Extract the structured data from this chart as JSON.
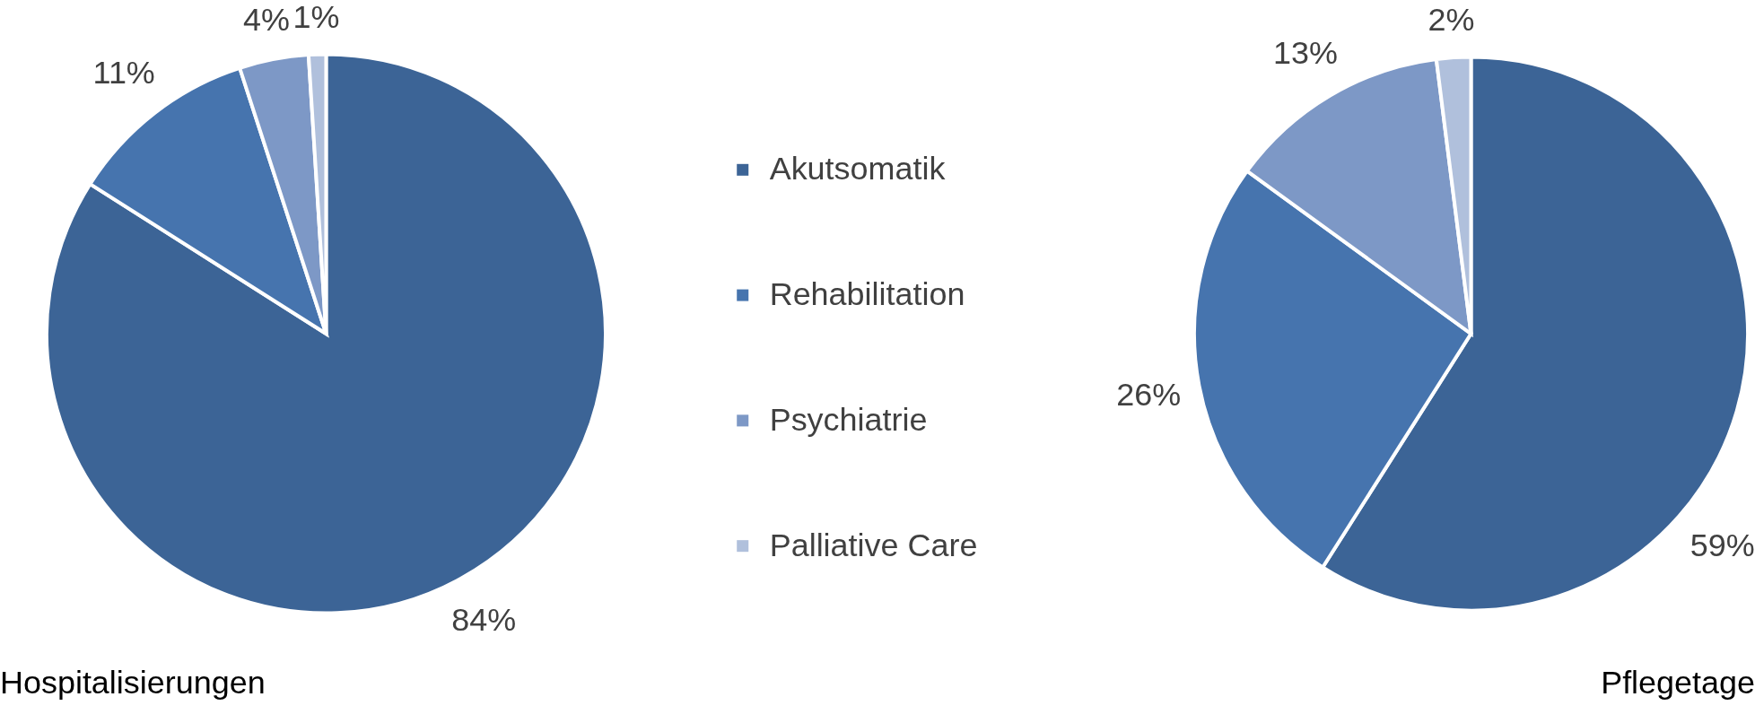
{
  "chart_data": [
    {
      "type": "pie",
      "title": "Hospitalisierungen",
      "categories": [
        "Akutsomatik",
        "Rehabilitation",
        "Psychiatrie",
        "Palliative Care"
      ],
      "values": [
        84,
        11,
        4,
        1
      ],
      "value_labels": [
        "84%",
        "11%",
        "4%",
        "1%"
      ],
      "colors": [
        "#3c6496",
        "#4674ae",
        "#7d98c6",
        "#b0c0dc"
      ],
      "legend": "right"
    },
    {
      "type": "pie",
      "title": "Pflegetage",
      "categories": [
        null,
        null,
        null,
        null
      ],
      "values": [
        59,
        26,
        13,
        2
      ],
      "value_labels": [
        "59%",
        "26%",
        "13%",
        "2%"
      ],
      "colors": [
        "#3c6496",
        "#4674ae",
        "#7d98c6",
        "#b0c0dc"
      ]
    }
  ]
}
